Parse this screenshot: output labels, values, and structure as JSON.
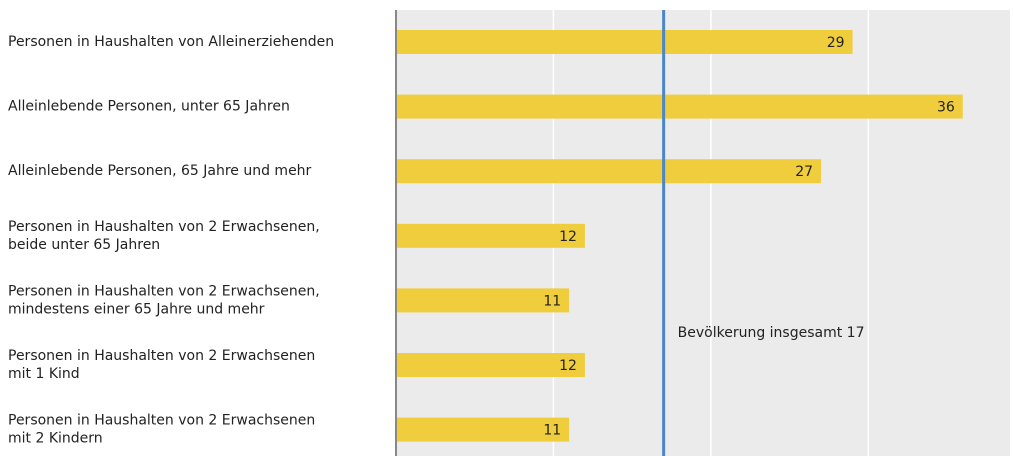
{
  "chart_data": {
    "type": "bar",
    "orientation": "horizontal",
    "categories": [
      "Personen in Haushalten von Alleinerziehenden",
      "Alleinlebende Personen, unter 65 Jahren",
      "Alleinlebende Personen, 65 Jahre und mehr",
      "Personen in Haushalten von 2 Erwachsenen,\nbeide unter 65 Jahren",
      "Personen in Haushalten von 2 Erwachsenen,\nmindestens einer 65 Jahre und mehr",
      "Personen in Haushalten von 2 Erwachsenen\nmit 1 Kind",
      "Personen in Haushalten von 2 Erwachsenen\nmit 2 Kindern"
    ],
    "values": [
      29,
      36,
      27,
      12,
      11,
      12,
      11
    ],
    "color": "#f0cd3c",
    "xlim": [
      0,
      39
    ],
    "xticks": [
      0,
      10,
      20,
      30
    ],
    "grid": true,
    "reference_line": {
      "value": 17,
      "color": "#4a86c8"
    },
    "annotation": "Bevölkerung insgesamt 17"
  }
}
